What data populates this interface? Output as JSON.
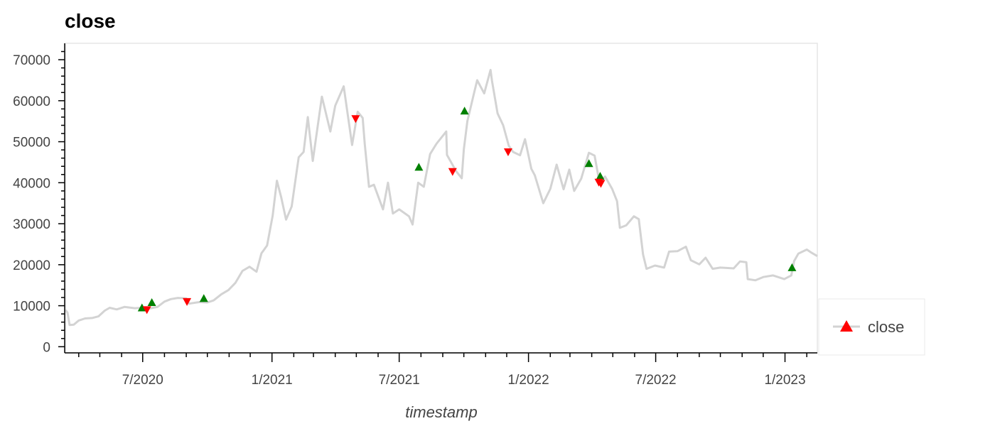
{
  "chart_data": {
    "type": "line",
    "title": "close",
    "xlabel": "timestamp",
    "ylabel": "",
    "ylim": [
      -1500,
      74000
    ],
    "xlim": [
      "2020-03-13",
      "2023-02-16"
    ],
    "x_ticks": [
      {
        "date": "2020-07-01",
        "label": "7/2020"
      },
      {
        "date": "2021-01-01",
        "label": "1/2021"
      },
      {
        "date": "2021-07-01",
        "label": "7/2021"
      },
      {
        "date": "2022-01-01",
        "label": "1/2022"
      },
      {
        "date": "2022-07-01",
        "label": "7/2022"
      },
      {
        "date": "2023-01-01",
        "label": "1/2023"
      }
    ],
    "y_ticks": [
      0,
      10000,
      20000,
      30000,
      40000,
      50000,
      60000,
      70000
    ],
    "grid": false,
    "legend": {
      "position": "right",
      "label": "close"
    },
    "series": [
      {
        "name": "close",
        "color": "#d3d3d3",
        "points": [
          [
            "2020-03-13",
            9000
          ],
          [
            "2020-03-16",
            8300
          ],
          [
            "2020-03-19",
            5300
          ],
          [
            "2020-03-25",
            5400
          ],
          [
            "2020-04-01",
            6400
          ],
          [
            "2020-04-10",
            6900
          ],
          [
            "2020-04-20",
            7000
          ],
          [
            "2020-04-29",
            7400
          ],
          [
            "2020-05-08",
            8800
          ],
          [
            "2020-05-15",
            9500
          ],
          [
            "2020-05-25",
            9100
          ],
          [
            "2020-06-05",
            9700
          ],
          [
            "2020-06-20",
            9400
          ],
          [
            "2020-06-30",
            9500
          ],
          [
            "2020-07-10",
            9300
          ],
          [
            "2020-07-22",
            9700
          ],
          [
            "2020-08-01",
            11000
          ],
          [
            "2020-08-10",
            11600
          ],
          [
            "2020-08-20",
            11900
          ],
          [
            "2020-09-01",
            11800
          ],
          [
            "2020-09-05",
            10500
          ],
          [
            "2020-09-20",
            10900
          ],
          [
            "2020-10-01",
            10800
          ],
          [
            "2020-10-10",
            11300
          ],
          [
            "2020-10-21",
            12800
          ],
          [
            "2020-10-31",
            13800
          ],
          [
            "2020-11-10",
            15600
          ],
          [
            "2020-11-20",
            18500
          ],
          [
            "2020-11-30",
            19500
          ],
          [
            "2020-12-10",
            18300
          ],
          [
            "2020-12-17",
            22800
          ],
          [
            "2020-12-25",
            24700
          ],
          [
            "2021-01-02",
            32000
          ],
          [
            "2021-01-08",
            40500
          ],
          [
            "2021-01-14",
            36500
          ],
          [
            "2021-01-21",
            31000
          ],
          [
            "2021-01-29",
            34200
          ],
          [
            "2021-02-08",
            46200
          ],
          [
            "2021-02-15",
            47500
          ],
          [
            "2021-02-21",
            56000
          ],
          [
            "2021-02-28",
            45300
          ],
          [
            "2021-03-13",
            61000
          ],
          [
            "2021-03-25",
            52500
          ],
          [
            "2021-04-01",
            58800
          ],
          [
            "2021-04-13",
            63500
          ],
          [
            "2021-04-25",
            49200
          ],
          [
            "2021-05-03",
            57300
          ],
          [
            "2021-05-10",
            55800
          ],
          [
            "2021-05-13",
            49500
          ],
          [
            "2021-05-19",
            39000
          ],
          [
            "2021-05-26",
            39500
          ],
          [
            "2021-06-08",
            33500
          ],
          [
            "2021-06-15",
            40000
          ],
          [
            "2021-06-22",
            32500
          ],
          [
            "2021-07-01",
            33500
          ],
          [
            "2021-07-15",
            31800
          ],
          [
            "2021-07-20",
            29800
          ],
          [
            "2021-07-28",
            40000
          ],
          [
            "2021-08-05",
            39000
          ],
          [
            "2021-08-14",
            47000
          ],
          [
            "2021-08-23",
            49500
          ],
          [
            "2021-09-06",
            52500
          ],
          [
            "2021-09-07",
            46800
          ],
          [
            "2021-09-20",
            42800
          ],
          [
            "2021-09-28",
            41100
          ],
          [
            "2021-10-01",
            48100
          ],
          [
            "2021-10-06",
            55000
          ],
          [
            "2021-10-15",
            61500
          ],
          [
            "2021-10-20",
            65000
          ],
          [
            "2021-10-30",
            61800
          ],
          [
            "2021-11-08",
            67500
          ],
          [
            "2021-11-10",
            64900
          ],
          [
            "2021-11-18",
            56900
          ],
          [
            "2021-11-26",
            54000
          ],
          [
            "2021-12-04",
            49000
          ],
          [
            "2021-12-10",
            47500
          ],
          [
            "2021-12-20",
            46700
          ],
          [
            "2021-12-27",
            50600
          ],
          [
            "2022-01-05",
            43400
          ],
          [
            "2022-01-10",
            41800
          ],
          [
            "2022-01-22",
            35000
          ],
          [
            "2022-02-01",
            38500
          ],
          [
            "2022-02-10",
            44400
          ],
          [
            "2022-02-20",
            38400
          ],
          [
            "2022-02-28",
            43200
          ],
          [
            "2022-03-07",
            38000
          ],
          [
            "2022-03-17",
            41000
          ],
          [
            "2022-03-28",
            47300
          ],
          [
            "2022-04-05",
            46600
          ],
          [
            "2022-04-12",
            40100
          ],
          [
            "2022-04-20",
            41500
          ],
          [
            "2022-04-30",
            38500
          ],
          [
            "2022-05-07",
            35500
          ],
          [
            "2022-05-11",
            29000
          ],
          [
            "2022-05-20",
            29600
          ],
          [
            "2022-05-31",
            31800
          ],
          [
            "2022-06-07",
            31100
          ],
          [
            "2022-06-13",
            22500
          ],
          [
            "2022-06-18",
            19000
          ],
          [
            "2022-06-30",
            19800
          ],
          [
            "2022-07-13",
            19300
          ],
          [
            "2022-07-20",
            23200
          ],
          [
            "2022-08-01",
            23300
          ],
          [
            "2022-08-13",
            24400
          ],
          [
            "2022-08-20",
            21100
          ],
          [
            "2022-09-01",
            20100
          ],
          [
            "2022-09-10",
            21700
          ],
          [
            "2022-09-20",
            19000
          ],
          [
            "2022-10-01",
            19300
          ],
          [
            "2022-10-20",
            19100
          ],
          [
            "2022-10-29",
            20800
          ],
          [
            "2022-11-07",
            20600
          ],
          [
            "2022-11-09",
            16500
          ],
          [
            "2022-11-20",
            16200
          ],
          [
            "2022-12-01",
            17000
          ],
          [
            "2022-12-15",
            17400
          ],
          [
            "2022-12-31",
            16500
          ],
          [
            "2023-01-10",
            17400
          ],
          [
            "2023-01-14",
            20900
          ],
          [
            "2023-01-20",
            22700
          ],
          [
            "2023-02-01",
            23700
          ],
          [
            "2023-02-08",
            22900
          ],
          [
            "2023-02-16",
            22100
          ]
        ]
      }
    ],
    "buy_signals": {
      "color": "#008000",
      "points": [
        [
          "2020-06-30",
          9500
        ],
        [
          "2020-07-14",
          10800
        ],
        [
          "2020-09-26",
          11800
        ],
        [
          "2021-07-29",
          43800
        ],
        [
          "2021-10-02",
          57500
        ],
        [
          "2022-03-28",
          44700
        ],
        [
          "2022-04-13",
          41600
        ],
        [
          "2023-01-11",
          19300
        ]
      ]
    },
    "sell_signals": {
      "color": "#ff0000",
      "points": [
        [
          "2020-07-07",
          9000
        ],
        [
          "2020-09-02",
          11000
        ],
        [
          "2021-04-30",
          55600
        ],
        [
          "2021-09-15",
          42700
        ],
        [
          "2021-12-03",
          47500
        ],
        [
          "2022-04-11",
          40100
        ],
        [
          "2022-04-14",
          39800
        ]
      ]
    }
  }
}
